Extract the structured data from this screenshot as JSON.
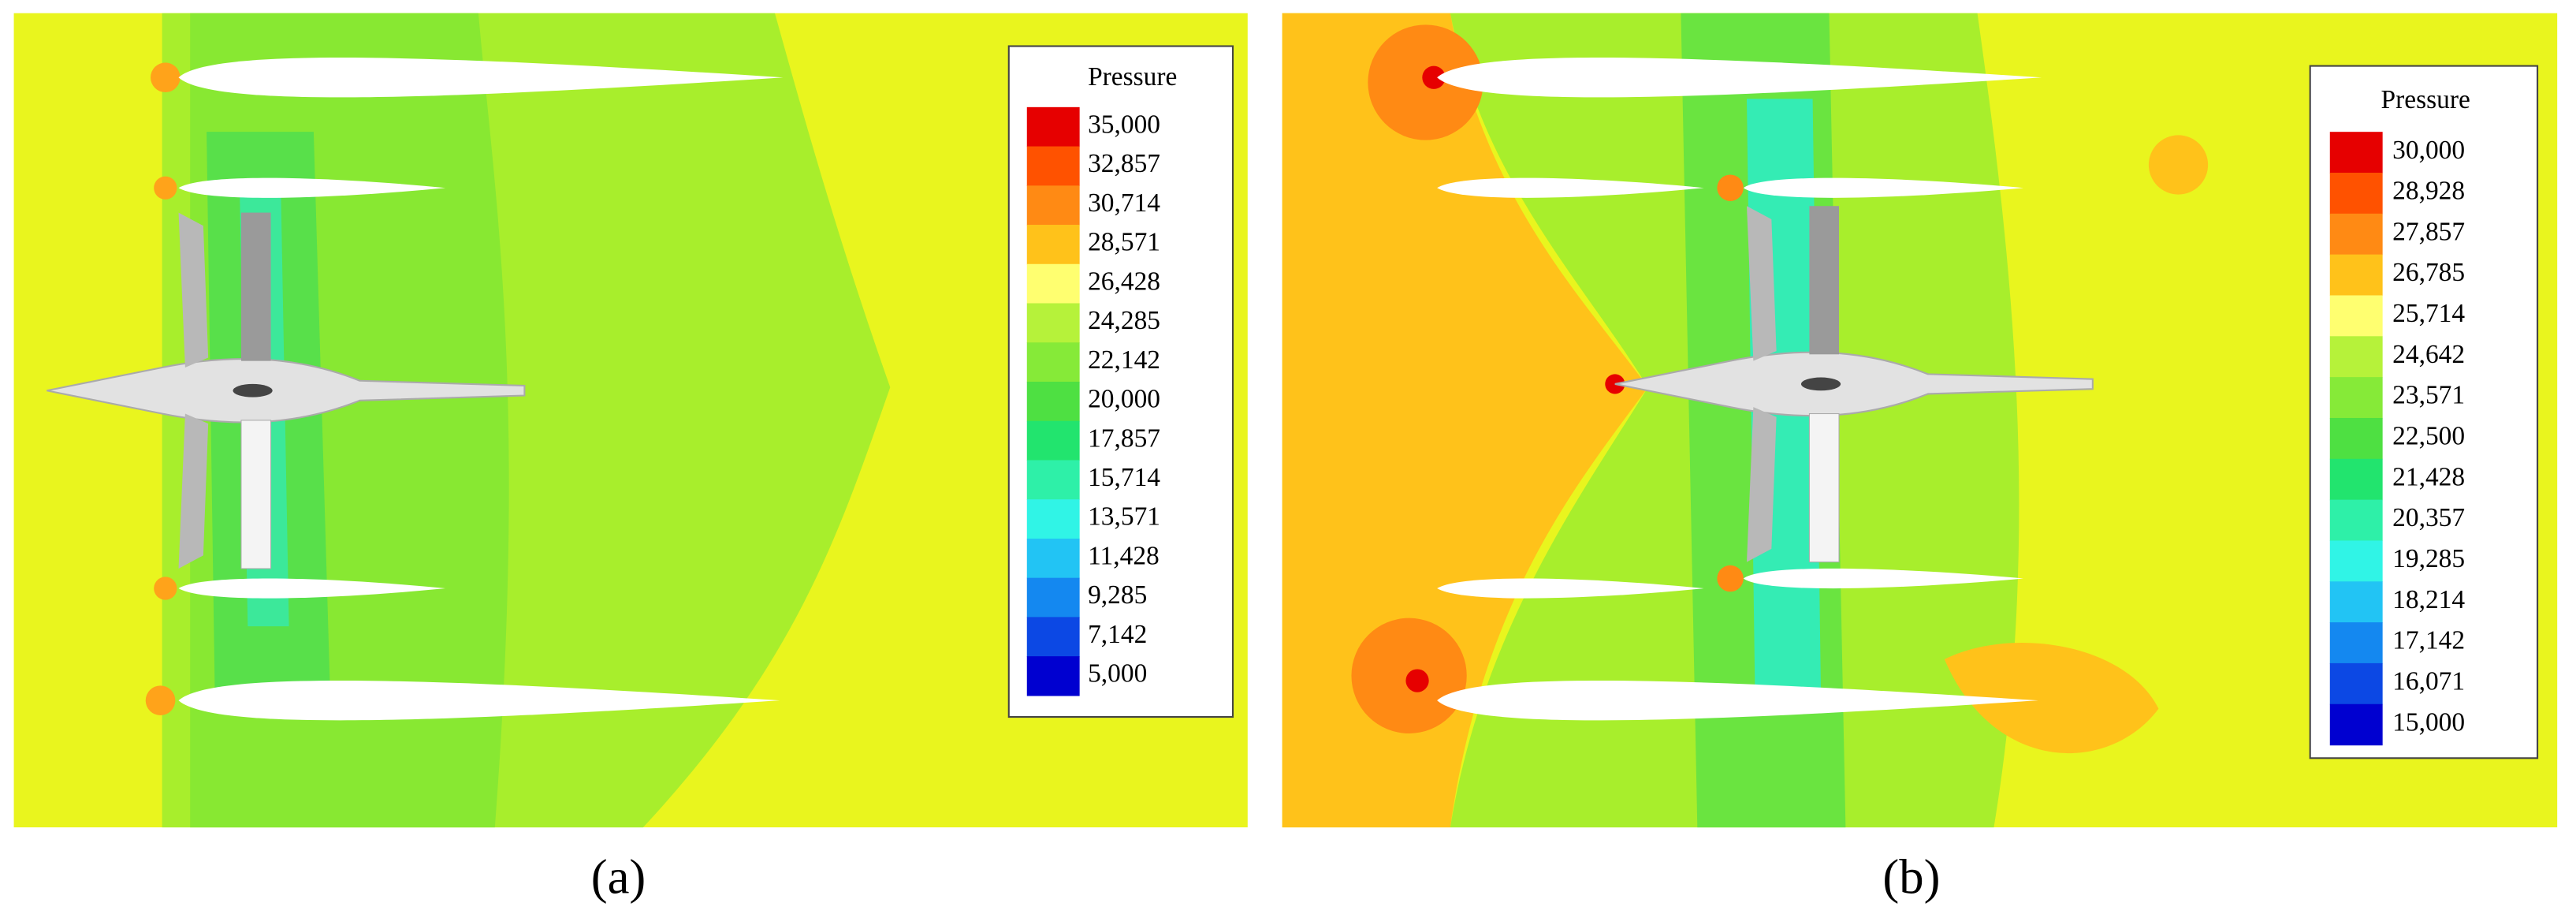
{
  "panels": [
    {
      "caption": "(a)",
      "legend": {
        "title": "Pressure",
        "labels": [
          "35,000",
          "32,857",
          "30,714",
          "28,571",
          "26,428",
          "24,285",
          "22,142",
          "20,000",
          "17,857",
          "15,714",
          "13,571",
          "11,428",
          "9,285",
          "7,142",
          "5,000"
        ],
        "colors": [
          "#e60000",
          "#ff5200",
          "#ff8a14",
          "#ffc21a",
          "#ffff70",
          "#b6f23a",
          "#86ea38",
          "#4ee042",
          "#22e46e",
          "#2ef0a8",
          "#30f4e6",
          "#22c4f4",
          "#1488f0",
          "#0c48e4",
          "#0000d0"
        ]
      }
    },
    {
      "caption": "(b)",
      "legend": {
        "title": "Pressure",
        "labels": [
          "30,000",
          "28,928",
          "27,857",
          "26,785",
          "25,714",
          "24,642",
          "23,571",
          "22,500",
          "21,428",
          "20,357",
          "19,285",
          "18,214",
          "17,142",
          "16,071",
          "15,000"
        ],
        "colors": [
          "#e60000",
          "#ff5200",
          "#ff8a14",
          "#ffc21a",
          "#ffff70",
          "#b6f23a",
          "#86ea38",
          "#4ee042",
          "#22e46e",
          "#2ef0a8",
          "#30f4e6",
          "#22c4f4",
          "#1488f0",
          "#0c48e4",
          "#0000d0"
        ]
      }
    }
  ]
}
